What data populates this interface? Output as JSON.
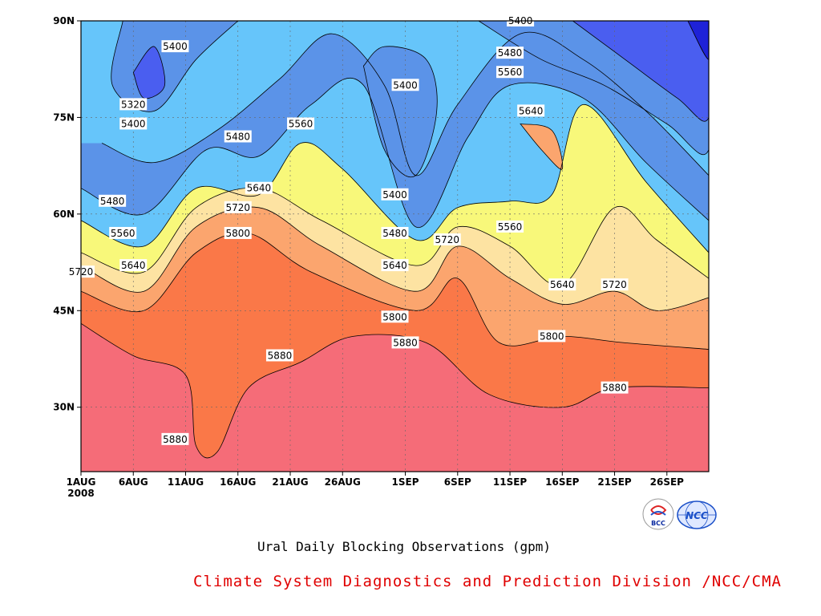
{
  "chart_data": {
    "type": "heatmap",
    "title": "Ural Daily Blocking Observations (gpm)",
    "xlabel": "",
    "ylabel": "",
    "x_unit": "day of year 2008",
    "x_range": [
      "2008-08-01",
      "2008-09-30"
    ],
    "y_range_deg": [
      20,
      90
    ],
    "x_ticks": [
      {
        "label": "1AUG",
        "sublabel": "2008",
        "date": "2008-08-01"
      },
      {
        "label": "6AUG",
        "date": "2008-08-06"
      },
      {
        "label": "11AUG",
        "date": "2008-08-11"
      },
      {
        "label": "16AUG",
        "date": "2008-08-16"
      },
      {
        "label": "21AUG",
        "date": "2008-08-21"
      },
      {
        "label": "26AUG",
        "date": "2008-08-26"
      },
      {
        "label": "1SEP",
        "date": "2008-09-01"
      },
      {
        "label": "6SEP",
        "date": "2008-09-06"
      },
      {
        "label": "11SEP",
        "date": "2008-09-11"
      },
      {
        "label": "16SEP",
        "date": "2008-09-16"
      },
      {
        "label": "21SEP",
        "date": "2008-09-21"
      },
      {
        "label": "26SEP",
        "date": "2008-09-26"
      }
    ],
    "y_ticks": [
      {
        "label": "30N",
        "lat": 30
      },
      {
        "label": "45N",
        "lat": 45
      },
      {
        "label": "60N",
        "lat": 60
      },
      {
        "label": "75N",
        "lat": 75
      },
      {
        "label": "90N",
        "lat": 90
      }
    ],
    "grid": true,
    "contour_levels": [
      5320,
      5400,
      5480,
      5560,
      5640,
      5720,
      5800,
      5880
    ],
    "fill_colors": [
      {
        "below": 5320,
        "color": "#1e22d8"
      },
      {
        "from": 5320,
        "to": 5400,
        "color": "#4a5ef0"
      },
      {
        "from": 5400,
        "to": 5480,
        "color": "#5b93e8"
      },
      {
        "from": 5480,
        "to": 5560,
        "color": "#66c5fa"
      },
      {
        "from": 5560,
        "to": 5640,
        "color": "#f8f87a"
      },
      {
        "from": 5640,
        "to": 5720,
        "color": "#fde3a2"
      },
      {
        "from": 5720,
        "to": 5800,
        "color": "#fba56e"
      },
      {
        "from": 5800,
        "to": 5880,
        "color": "#fa7848"
      },
      {
        "from": 5880,
        "to": 5960,
        "color": "#f56c78"
      },
      {
        "above": 5960,
        "color": "#f0364a"
      }
    ],
    "contours": [
      {
        "level": 5400,
        "points": [
          [
            "2008-08-03",
            71
          ],
          [
            "2008-08-08",
            68
          ],
          [
            "2008-08-14",
            73
          ],
          [
            "2008-08-20",
            81
          ],
          [
            "2008-08-25",
            88
          ],
          [
            "2008-08-30",
            80
          ],
          [
            "2008-09-02",
            66
          ],
          [
            "2008-09-06",
            77
          ],
          [
            "2008-09-12",
            88
          ],
          [
            "2008-09-18",
            84
          ],
          [
            "2008-09-24",
            76
          ],
          [
            "2008-09-30",
            66
          ]
        ]
      },
      {
        "level": 5480,
        "points": [
          [
            "2008-08-01",
            64
          ],
          [
            "2008-08-07",
            60
          ],
          [
            "2008-08-13",
            70
          ],
          [
            "2008-08-18",
            69
          ],
          [
            "2008-08-23",
            77
          ],
          [
            "2008-08-28",
            80
          ],
          [
            "2008-09-02",
            58
          ],
          [
            "2008-09-07",
            72
          ],
          [
            "2008-09-11",
            80
          ],
          [
            "2008-09-18",
            78
          ],
          [
            "2008-09-24",
            68
          ],
          [
            "2008-09-30",
            59
          ]
        ]
      },
      {
        "level": 5560,
        "points": [
          [
            "2008-08-01",
            59
          ],
          [
            "2008-08-07",
            55
          ],
          [
            "2008-08-12",
            64
          ],
          [
            "2008-08-18",
            63
          ],
          [
            "2008-08-22",
            71
          ],
          [
            "2008-08-26",
            67
          ],
          [
            "2008-09-02",
            56
          ],
          [
            "2008-09-06",
            61
          ],
          [
            "2008-09-11",
            62
          ],
          [
            "2008-09-15",
            63
          ],
          [
            "2008-09-18",
            77
          ],
          [
            "2008-09-24",
            65
          ],
          [
            "2008-09-30",
            54
          ]
        ]
      },
      {
        "level": 5640,
        "points": [
          [
            "2008-08-01",
            54
          ],
          [
            "2008-08-07",
            51
          ],
          [
            "2008-08-12",
            61
          ],
          [
            "2008-08-18",
            64
          ],
          [
            "2008-08-24",
            59
          ],
          [
            "2008-09-02",
            52
          ],
          [
            "2008-09-06",
            58
          ],
          [
            "2008-09-11",
            55
          ],
          [
            "2008-09-16",
            49
          ],
          [
            "2008-09-21",
            61
          ],
          [
            "2008-09-25",
            56
          ],
          [
            "2008-09-30",
            50
          ]
        ]
      },
      {
        "level": 5720,
        "points": [
          [
            "2008-08-01",
            52
          ],
          [
            "2008-08-07",
            48
          ],
          [
            "2008-08-12",
            58
          ],
          [
            "2008-08-18",
            61
          ],
          [
            "2008-08-24",
            55
          ],
          [
            "2008-09-02",
            48
          ],
          [
            "2008-09-06",
            55
          ],
          [
            "2008-09-11",
            50
          ],
          [
            "2008-09-16",
            46
          ],
          [
            "2008-09-21",
            48
          ],
          [
            "2008-09-25",
            45
          ],
          [
            "2008-09-30",
            47
          ]
        ]
      },
      {
        "level": 5800,
        "points": [
          [
            "2008-08-01",
            48
          ],
          [
            "2008-08-07",
            45
          ],
          [
            "2008-08-12",
            54
          ],
          [
            "2008-08-17",
            57
          ],
          [
            "2008-08-23",
            51
          ],
          [
            "2008-09-02",
            45
          ],
          [
            "2008-09-06",
            50
          ],
          [
            "2008-09-10",
            40
          ],
          [
            "2008-09-16",
            41
          ],
          [
            "2008-09-22",
            40
          ],
          [
            "2008-09-30",
            39
          ]
        ]
      },
      {
        "level": 5880,
        "points": [
          [
            "2008-08-01",
            43
          ],
          [
            "2008-08-06",
            38
          ],
          [
            "2008-08-11",
            35
          ],
          [
            "2008-08-12",
            24
          ],
          [
            "2008-08-14",
            23
          ],
          [
            "2008-08-17",
            33
          ],
          [
            "2008-08-22",
            37
          ],
          [
            "2008-08-27",
            41
          ],
          [
            "2008-09-03",
            40
          ],
          [
            "2008-09-09",
            32
          ],
          [
            "2008-09-16",
            30
          ],
          [
            "2008-09-21",
            33
          ],
          [
            "2008-09-30",
            33
          ]
        ]
      }
    ],
    "contour_labels": [
      {
        "text": "5400",
        "date": "2008-08-10",
        "lat": 86
      },
      {
        "text": "5320",
        "date": "2008-08-06",
        "lat": 77
      },
      {
        "text": "5400",
        "date": "2008-08-06",
        "lat": 74
      },
      {
        "text": "5480",
        "date": "2008-08-16",
        "lat": 72
      },
      {
        "text": "5560",
        "date": "2008-08-22",
        "lat": 74
      },
      {
        "text": "5480",
        "date": "2008-08-04",
        "lat": 62
      },
      {
        "text": "5560",
        "date": "2008-08-05",
        "lat": 57
      },
      {
        "text": "5640",
        "date": "2008-08-06",
        "lat": 52
      },
      {
        "text": "5720",
        "date": "2008-08-01",
        "lat": 51
      },
      {
        "text": "5640",
        "date": "2008-08-18",
        "lat": 64
      },
      {
        "text": "5720",
        "date": "2008-08-16",
        "lat": 61
      },
      {
        "text": "5800",
        "date": "2008-08-16",
        "lat": 57
      },
      {
        "text": "5880",
        "date": "2008-08-20",
        "lat": 38
      },
      {
        "text": "5880",
        "date": "2008-08-10",
        "lat": 25
      },
      {
        "text": "5400",
        "date": "2008-09-01",
        "lat": 80
      },
      {
        "text": "5400",
        "date": "2008-08-31",
        "lat": 63
      },
      {
        "text": "5480",
        "date": "2008-08-31",
        "lat": 57
      },
      {
        "text": "5640",
        "date": "2008-08-31",
        "lat": 52
      },
      {
        "text": "5800",
        "date": "2008-08-31",
        "lat": 44
      },
      {
        "text": "5880",
        "date": "2008-09-01",
        "lat": 40
      },
      {
        "text": "5720",
        "date": "2008-09-05",
        "lat": 56
      },
      {
        "text": "5400",
        "date": "2008-09-12",
        "lat": 90
      },
      {
        "text": "5480",
        "date": "2008-09-11",
        "lat": 85
      },
      {
        "text": "5560",
        "date": "2008-09-11",
        "lat": 82
      },
      {
        "text": "5640",
        "date": "2008-09-13",
        "lat": 76
      },
      {
        "text": "5560",
        "date": "2008-09-11",
        "lat": 58
      },
      {
        "text": "5640",
        "date": "2008-09-16",
        "lat": 49
      },
      {
        "text": "5720",
        "date": "2008-09-21",
        "lat": 49
      },
      {
        "text": "5800",
        "date": "2008-09-15",
        "lat": 41
      },
      {
        "text": "5880",
        "date": "2008-09-21",
        "lat": 33
      }
    ]
  },
  "title": "Ural Daily Blocking Observations (gpm)",
  "credit": "Climate System Diagnostics and Prediction Division /NCC/CMA",
  "logos": [
    {
      "name": "bcc-logo",
      "text": "BCC",
      "color": "#0a2aa0"
    },
    {
      "name": "ncc-logo",
      "text": "NCC",
      "color": "#1a4fc8"
    }
  ]
}
